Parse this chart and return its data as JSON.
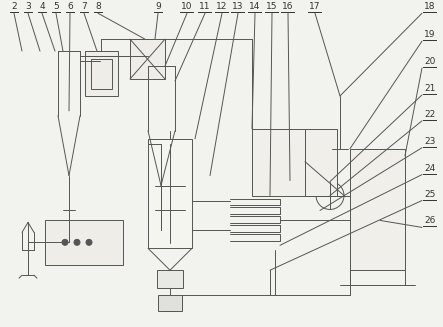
{
  "bg_color": "#f2f2ee",
  "line_color": "#555555",
  "label_color": "#333333",
  "fig_width": 4.43,
  "fig_height": 3.27,
  "dpi": 100
}
